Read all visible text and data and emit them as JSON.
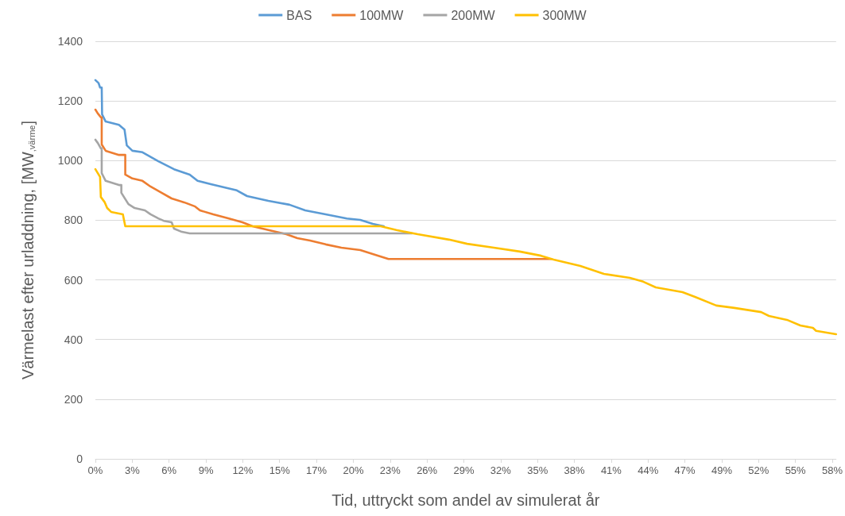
{
  "chart_data": {
    "type": "line",
    "xlabel": "Tid, uttryckt som andel av simulerat år",
    "ylabel": "Värmelast efter urladdning, [MW$_{,värme}$]",
    "xlim": [
      0,
      58.5
    ],
    "xticks": [
      {
        "value": 0,
        "label": "0%"
      },
      {
        "value": 2.91,
        "label": "3%"
      },
      {
        "value": 5.82,
        "label": "6%"
      },
      {
        "value": 8.73,
        "label": "9%"
      },
      {
        "value": 11.64,
        "label": "12%"
      },
      {
        "value": 14.55,
        "label": "15%"
      },
      {
        "value": 17.46,
        "label": "17%"
      },
      {
        "value": 20.37,
        "label": "20%"
      },
      {
        "value": 23.28,
        "label": "23%"
      },
      {
        "value": 26.19,
        "label": "26%"
      },
      {
        "value": 29.1,
        "label": "29%"
      },
      {
        "value": 32.01,
        "label": "32%"
      },
      {
        "value": 34.92,
        "label": "35%"
      },
      {
        "value": 37.83,
        "label": "38%"
      },
      {
        "value": 40.74,
        "label": "41%"
      },
      {
        "value": 43.65,
        "label": "44%"
      },
      {
        "value": 46.56,
        "label": "47%"
      },
      {
        "value": 49.47,
        "label": "49%"
      },
      {
        "value": 52.38,
        "label": "52%"
      },
      {
        "value": 55.29,
        "label": "55%"
      },
      {
        "value": 58.2,
        "label": "58%"
      }
    ],
    "ylim": [
      0,
      1400
    ],
    "yticks": [
      0,
      200,
      400,
      600,
      800,
      1000,
      1200,
      1400
    ],
    "grid": "y",
    "legend": "top",
    "marker": "none",
    "line_style": "solid",
    "series": [
      {
        "name": "BAS",
        "color": "#5b9bd5",
        "x": [
          0,
          0.25,
          0.37,
          0.5,
          0.53,
          0.81,
          1.86,
          2.3,
          2.48,
          2.92,
          3.72,
          4.97,
          6.21,
          7.45,
          8.07,
          9.12,
          10.37,
          11.17,
          11.98,
          13.66,
          15.33,
          16.57,
          18.19,
          19.86,
          20.92,
          21.91,
          22.78
        ],
        "values": [
          1270,
          1260,
          1245,
          1245,
          1155,
          1131,
          1120,
          1104,
          1051,
          1033,
          1028,
          998,
          971,
          953,
          932,
          921,
          908,
          900,
          881,
          865,
          852,
          833,
          820,
          806,
          801,
          788,
          780
        ]
      },
      {
        "name": "100MW",
        "color": "#ed7d31",
        "x": [
          0,
          0.19,
          0.43,
          0.5,
          0.5,
          0.81,
          1.86,
          2.36,
          2.36,
          2.92,
          3.72,
          4.35,
          5.15,
          6.02,
          7.01,
          7.88,
          8.26,
          9.31,
          10.55,
          11.61,
          12.41,
          13.66,
          15.08,
          15.95,
          16.95,
          18.19,
          19.43,
          20.92,
          22.35,
          23.15,
          36.0
        ],
        "values": [
          1171,
          1158,
          1145,
          1145,
          1054,
          1033,
          1019,
          1019,
          953,
          940,
          932,
          913,
          894,
          873,
          860,
          846,
          833,
          820,
          806,
          793,
          780,
          767,
          753,
          740,
          732,
          719,
          708,
          700,
          681,
          670,
          670
        ]
      },
      {
        "name": "200MW",
        "color": "#a5a5a5",
        "x": [
          0,
          0.19,
          0.43,
          0.5,
          0.5,
          0.81,
          1.86,
          2.05,
          2.05,
          2.61,
          3.1,
          3.91,
          4.35,
          4.97,
          5.4,
          6.02,
          6.21,
          6.83,
          7.45,
          25.0
        ],
        "values": [
          1070,
          1059,
          1041,
          1041,
          958,
          932,
          918,
          918,
          892,
          854,
          841,
          833,
          820,
          806,
          798,
          793,
          772,
          761,
          756,
          756
        ]
      },
      {
        "name": "300MW",
        "color": "#ffc000",
        "x": [
          0,
          0.19,
          0.37,
          0.43,
          0.74,
          0.93,
          1.24,
          2.17,
          2.36,
          22.53,
          23.77,
          25.45,
          27.93,
          29.36,
          31.47,
          33.52,
          35.2,
          36.19,
          38.3,
          40.16,
          42.21,
          43.27,
          44.26,
          46.37,
          47.36,
          49.04,
          50.47,
          52.58,
          53.2,
          54.62,
          55.68,
          56.67,
          56.92,
          58.5
        ],
        "values": [
          971,
          958,
          945,
          878,
          860,
          841,
          828,
          820,
          780,
          780,
          767,
          753,
          735,
          721,
          708,
          695,
          681,
          668,
          647,
          620,
          607,
          594,
          575,
          559,
          543,
          514,
          506,
          492,
          479,
          466,
          447,
          439,
          429,
          418
        ]
      }
    ]
  }
}
